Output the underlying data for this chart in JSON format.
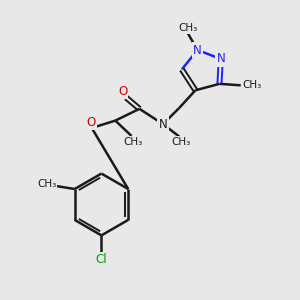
{
  "background_color": "#e8e8e8",
  "bond_color": "#1a1a1a",
  "nitrogen_color": "#2020ff",
  "oxygen_color": "#cc0000",
  "chlorine_color": "#009900",
  "text_color": "#1a1a1a",
  "figsize": [
    3.0,
    3.0
  ],
  "dpi": 100,
  "xlim": [
    0,
    10
  ],
  "ylim": [
    0,
    10
  ]
}
